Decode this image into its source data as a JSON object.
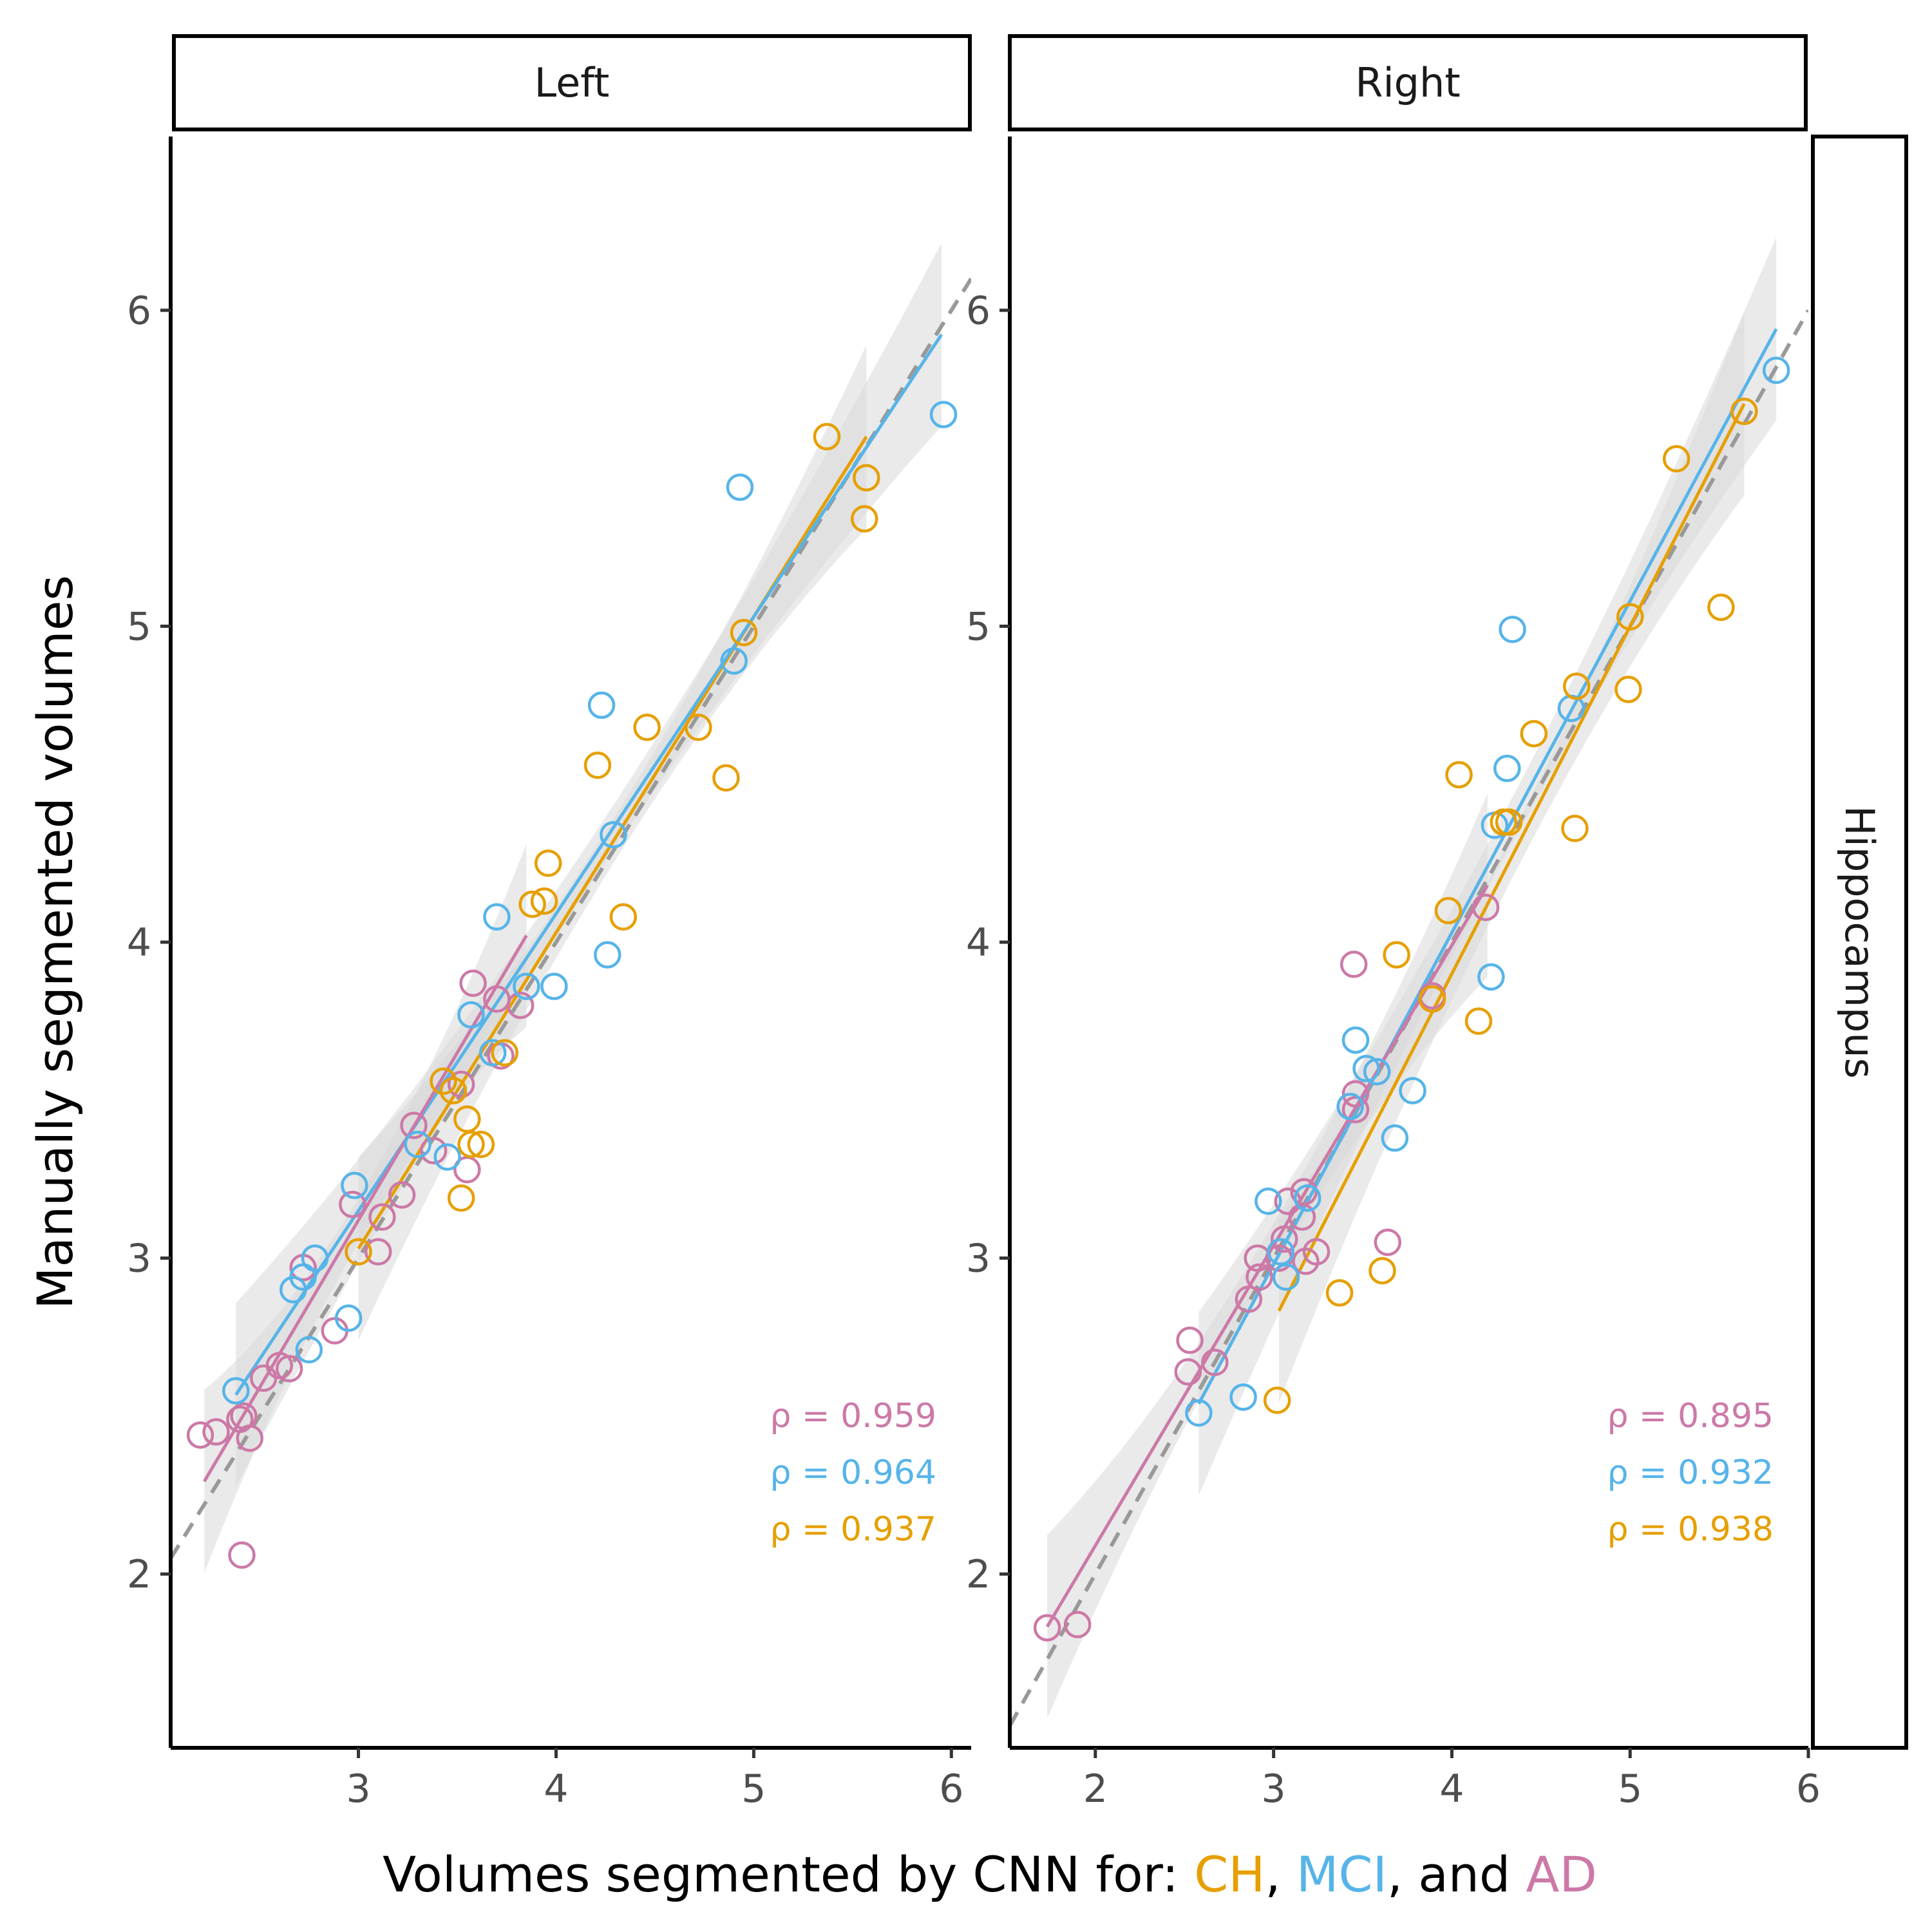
{
  "colors": {
    "CH": "#E69F00",
    "MCI": "#56B4E9",
    "AD": "#CC79A7",
    "identity": "#999999",
    "band": "#d9d9d9"
  },
  "labels": {
    "ylabel": "Manually segmented volumes",
    "xlabel_prefix": "Volumes segmented by CNN for: ",
    "xlabel_ch": "CH",
    "xlabel_sep1": ", ",
    "xlabel_mci": "MCI",
    "xlabel_sep2": ", and ",
    "xlabel_ad": "AD",
    "row_strip": "Hippocampus"
  },
  "chart_data": [
    {
      "type": "scatter",
      "panel": "Left",
      "row": "Hippocampus",
      "xlabel": "Volumes segmented by CNN for: CH, MCI, and AD",
      "ylabel": "Manually segmented volumes",
      "xlim": [
        2.05,
        6.1
      ],
      "ylim": [
        1.45,
        6.55
      ],
      "xticks": [
        3,
        4,
        5,
        6
      ],
      "yticks": [
        2,
        3,
        4,
        5,
        6
      ],
      "identity_line": true,
      "series": [
        {
          "name": "AD",
          "color": "#CC79A7",
          "rho": "ρ = 0.959",
          "fit": {
            "x": [
              2.22,
              3.85
            ],
            "slope": 1.06,
            "intercept": -0.06
          },
          "x": [
            2.2,
            2.28,
            2.4,
            2.45,
            2.42,
            2.52,
            2.6,
            2.65,
            2.72,
            2.88,
            2.97,
            3.1,
            3.12,
            3.22,
            3.28,
            3.38,
            3.52,
            3.55,
            3.58,
            3.7,
            3.72,
            3.82,
            2.41
          ],
          "y": [
            2.44,
            2.45,
            2.49,
            2.43,
            2.5,
            2.62,
            2.66,
            2.65,
            2.97,
            2.77,
            3.17,
            3.02,
            3.13,
            3.2,
            3.42,
            3.34,
            3.55,
            3.28,
            3.87,
            3.82,
            3.64,
            3.8,
            2.06
          ]
        },
        {
          "name": "MCI",
          "color": "#56B4E9",
          "rho": "ρ = 0.964",
          "fit": {
            "x": [
              2.38,
              5.95
            ],
            "slope": 0.94,
            "intercept": 0.33
          },
          "x": [
            2.38,
            2.67,
            2.72,
            2.75,
            2.78,
            2.95,
            2.98,
            3.3,
            3.45,
            3.57,
            3.68,
            3.7,
            3.85,
            3.99,
            4.23,
            4.26,
            4.29,
            4.9,
            4.93,
            5.96
          ],
          "y": [
            2.58,
            2.9,
            2.94,
            2.71,
            3.0,
            2.81,
            3.23,
            3.36,
            3.32,
            3.77,
            3.65,
            4.08,
            3.86,
            3.86,
            4.75,
            3.96,
            4.34,
            4.89,
            5.44,
            5.67
          ]
        },
        {
          "name": "CH",
          "color": "#E69F00",
          "rho": "ρ = 0.937",
          "fit": {
            "x": [
              3.0,
              5.57
            ],
            "slope": 1.0,
            "intercept": 0.03
          },
          "x": [
            3.0,
            3.43,
            3.48,
            3.52,
            3.55,
            3.57,
            3.62,
            3.74,
            3.88,
            3.94,
            3.96,
            4.21,
            4.34,
            4.46,
            4.72,
            4.86,
            4.95,
            5.37,
            5.56,
            5.57
          ],
          "y": [
            3.02,
            3.56,
            3.53,
            3.19,
            3.44,
            3.36,
            3.36,
            3.65,
            4.12,
            4.13,
            4.25,
            4.56,
            4.08,
            4.68,
            4.68,
            4.52,
            4.98,
            5.6,
            5.34,
            5.47
          ]
        }
      ]
    },
    {
      "type": "scatter",
      "panel": "Right",
      "row": "Hippocampus",
      "xlabel": "Volumes segmented by CNN for: CH, MCI, and AD",
      "ylabel": "Manually segmented volumes",
      "xlim": [
        1.52,
        6.0
      ],
      "ylim": [
        1.45,
        6.55
      ],
      "xticks": [
        2,
        3,
        4,
        5,
        6
      ],
      "yticks": [
        2,
        3,
        4,
        5,
        6
      ],
      "identity_line": true,
      "series": [
        {
          "name": "AD",
          "color": "#CC79A7",
          "rho": "ρ = 0.895",
          "fit": {
            "x": [
              1.73,
              4.2
            ],
            "slope": 0.95,
            "intercept": 0.19
          },
          "x": [
            1.73,
            1.9,
            2.52,
            2.53,
            2.67,
            2.86,
            2.91,
            2.92,
            3.03,
            3.06,
            3.08,
            3.16,
            3.17,
            3.18,
            3.24,
            3.45,
            3.46,
            3.46,
            3.64,
            3.89,
            4.19
          ],
          "y": [
            1.83,
            1.84,
            2.64,
            2.74,
            2.67,
            2.87,
            3.0,
            2.94,
            3.0,
            3.06,
            3.18,
            3.13,
            3.21,
            2.99,
            3.02,
            3.93,
            3.52,
            3.47,
            3.05,
            3.83,
            4.11
          ]
        },
        {
          "name": "MCI",
          "color": "#56B4E9",
          "rho": "ρ = 0.932",
          "fit": {
            "x": [
              2.58,
              5.82
            ],
            "slope": 1.05,
            "intercept": -0.17
          },
          "x": [
            2.58,
            2.83,
            2.97,
            3.04,
            3.07,
            3.19,
            3.43,
            3.46,
            3.52,
            3.58,
            3.68,
            3.78,
            4.22,
            4.24,
            4.31,
            4.34,
            4.67,
            5.82
          ],
          "y": [
            2.51,
            2.56,
            3.18,
            3.02,
            2.94,
            3.19,
            3.48,
            3.69,
            3.6,
            3.59,
            3.38,
            3.53,
            3.89,
            4.37,
            4.55,
            4.99,
            4.74,
            5.81
          ]
        },
        {
          "name": "CH",
          "color": "#E69F00",
          "rho": "ρ = 0.938",
          "fit": {
            "x": [
              3.03,
              5.64
            ],
            "slope": 1.1,
            "intercept": -0.5
          },
          "x": [
            3.02,
            3.37,
            3.61,
            3.69,
            3.89,
            3.98,
            4.04,
            4.15,
            4.29,
            4.32,
            4.46,
            4.69,
            4.7,
            4.99,
            5.0,
            5.26,
            5.51,
            5.64
          ],
          "y": [
            2.55,
            2.89,
            2.96,
            3.96,
            3.82,
            4.1,
            4.53,
            3.75,
            4.38,
            4.38,
            4.66,
            4.36,
            4.81,
            4.8,
            5.03,
            5.53,
            5.06,
            5.68
          ]
        }
      ]
    }
  ]
}
